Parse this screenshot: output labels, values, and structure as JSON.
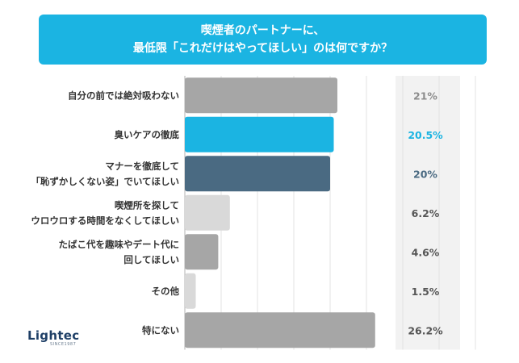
{
  "title": {
    "line1": "喫煙者のパートナーに、",
    "line2": "最低限「これだけはやってほしい」のは何ですか？"
  },
  "logo": {
    "text": "Lightec",
    "sub": "SINCE1987"
  },
  "chart_data": {
    "type": "bar",
    "orientation": "horizontal",
    "xlim": [
      0,
      40
    ],
    "grid": true,
    "categories": [
      "自分の前では絶対吸わない",
      "臭いケアの徹底",
      "マナーを徹底して\n「恥ずかしくない姿」でいてほしい",
      "喫煙所を探して\nウロウロする時間をなくしてほしい",
      "たばこ代を趣味やデート代に\n回してほしい",
      "その他",
      "特にない"
    ],
    "values": [
      21,
      20.5,
      20,
      6.2,
      4.6,
      1.5,
      26.2
    ],
    "value_labels": [
      "21%",
      "20.5%",
      "20%",
      "6.2%",
      "4.6%",
      "1.5%",
      "26.2%"
    ],
    "bar_colors": [
      "#a6a6a6",
      "#1bb4e2",
      "#4a6a82",
      "#d9d9d9",
      "#a6a6a6",
      "#d9d9d9",
      "#a6a6a6"
    ],
    "label_colors": [
      "#333333",
      "#1bb4e2",
      "#333333",
      "#333333",
      "#333333",
      "#333333",
      "#333333"
    ],
    "value_colors": [
      "#8c8c8c",
      "#1bb4e2",
      "#4a6a82",
      "#555555",
      "#555555",
      "#555555",
      "#555555"
    ]
  }
}
